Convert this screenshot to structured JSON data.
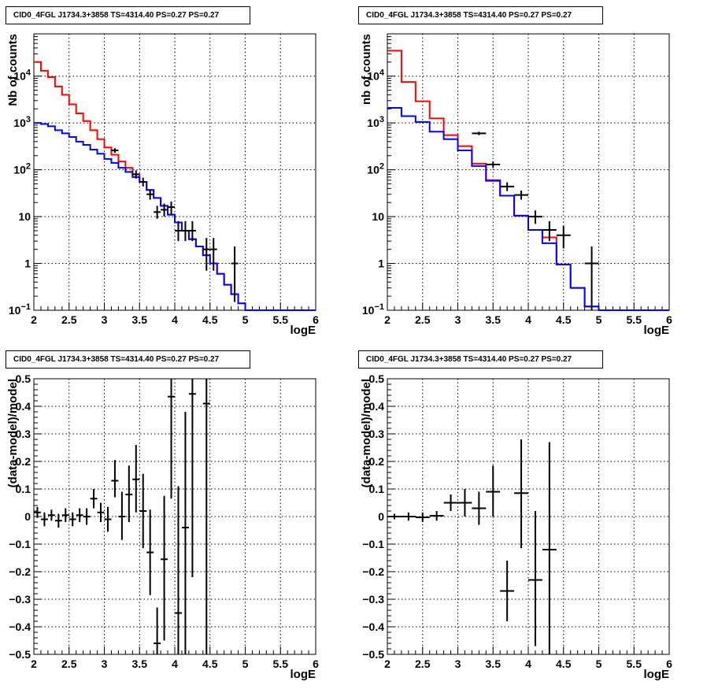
{
  "panels": [
    {
      "title": "CID0_4FGL J1734.3+3858 TS=4314.40 PS=0.27 PS=0.27",
      "chart_data": {
        "type": "line",
        "ylabel": "Nb of counts",
        "xlabel": "logE",
        "xlim": [
          2,
          6
        ],
        "ylim": [
          0.1,
          80000
        ],
        "yscale": "log",
        "grid": true,
        "xticks": [
          "2",
          "2.5",
          "3",
          "3.5",
          "4",
          "4.5",
          "5",
          "5.5",
          "6"
        ],
        "yticks": [
          {
            "value": 0.1,
            "label": "10",
            "sup": "−1"
          },
          {
            "value": 1,
            "label": "1",
            "sup": ""
          },
          {
            "value": 10,
            "label": "10",
            "sup": ""
          },
          {
            "value": 100,
            "label": "10",
            "sup": "2"
          },
          {
            "value": 1000,
            "label": "10",
            "sup": "3"
          },
          {
            "value": 10000,
            "label": "10",
            "sup": "4"
          }
        ],
        "bin_edges": [
          2.0,
          2.1,
          2.2,
          2.3,
          2.4,
          2.5,
          2.6,
          2.7,
          2.8,
          2.9,
          3.0,
          3.1,
          3.2,
          3.3,
          3.4,
          3.5,
          3.6,
          3.7,
          3.8,
          3.9,
          4.0,
          4.1,
          4.2,
          4.3,
          4.4,
          4.5,
          4.6,
          4.7,
          4.8,
          4.9,
          5.0,
          5.1,
          5.2,
          5.3,
          5.4,
          5.5,
          5.6,
          5.7,
          5.8,
          5.9,
          6.0
        ],
        "series": [
          {
            "color": "#ff0000",
            "values": [
              20000,
              13000,
              9500,
              6000,
              4000,
              2500,
              1600,
              1100,
              700,
              450,
              300,
              210,
              150,
              110,
              80,
              55,
              37,
              25,
              17,
              11,
              7.5,
              5,
              3.3,
              2.3,
              1.5,
              1.0,
              0.6,
              0.35,
              0.22,
              0.14,
              0.1,
              0.1,
              0.1,
              0.1,
              0.1,
              0.1,
              0.1,
              0.1,
              0.1,
              0.1
            ]
          },
          {
            "color": "#0000ff",
            "values": [
              1000,
              950,
              850,
              700,
              600,
              500,
              400,
              340,
              270,
              220,
              170,
              140,
              110,
              90,
              70,
              55,
              37,
              25,
              17,
              11,
              7.5,
              5,
              3.3,
              2.3,
              1.5,
              1.0,
              0.6,
              0.35,
              0.22,
              0.14,
              0.1,
              0.1,
              0.1,
              0.1,
              0.1,
              0.1,
              0.1,
              0.1,
              0.1,
              0.1
            ]
          }
        ],
        "points": [
          {
            "x": 3.15,
            "y": 260,
            "ylo": 230,
            "yhi": 290,
            "xerr": 0.05
          },
          {
            "x": 3.45,
            "y": 80,
            "ylo": 65,
            "yhi": 97,
            "xerr": 0.05
          },
          {
            "x": 3.55,
            "y": 55,
            "ylo": 44,
            "yhi": 68,
            "xerr": 0.05
          },
          {
            "x": 3.65,
            "y": 30,
            "ylo": 23,
            "yhi": 38,
            "xerr": 0.05
          },
          {
            "x": 3.75,
            "y": 12.5,
            "ylo": 9,
            "yhi": 17,
            "xerr": 0.05
          },
          {
            "x": 3.85,
            "y": 14,
            "ylo": 10,
            "yhi": 19,
            "xerr": 0.05
          },
          {
            "x": 3.95,
            "y": 16,
            "ylo": 11,
            "yhi": 21,
            "xerr": 0.05
          },
          {
            "x": 4.05,
            "y": 5,
            "ylo": 3,
            "yhi": 8,
            "xerr": 0.05
          },
          {
            "x": 4.15,
            "y": 5,
            "ylo": 3,
            "yhi": 8,
            "xerr": 0.05
          },
          {
            "x": 4.25,
            "y": 5,
            "ylo": 3,
            "yhi": 8,
            "xerr": 0.05
          },
          {
            "x": 4.45,
            "y": 2,
            "ylo": 0.7,
            "yhi": 3.5,
            "xerr": 0.05
          },
          {
            "x": 4.55,
            "y": 2,
            "ylo": 0.7,
            "yhi": 3.5,
            "xerr": 0.05
          },
          {
            "x": 4.85,
            "y": 1,
            "ylo": 0.15,
            "yhi": 2.3,
            "xerr": 0.05
          }
        ]
      }
    },
    {
      "title": "CID0_4FGL J1734.3+3858 TS=4314.40 PS=0.27 PS=0.27",
      "chart_data": {
        "type": "line",
        "ylabel": "nb of counts",
        "xlabel": "logE",
        "xlim": [
          2,
          6
        ],
        "ylim": [
          0.1,
          80000
        ],
        "yscale": "log",
        "grid": true,
        "xticks": [
          "2",
          "2.5",
          "3",
          "3.5",
          "4",
          "4.5",
          "5",
          "5.5",
          "6"
        ],
        "yticks": [
          {
            "value": 0.1,
            "label": "10",
            "sup": "−1"
          },
          {
            "value": 1,
            "label": "1",
            "sup": ""
          },
          {
            "value": 10,
            "label": "10",
            "sup": ""
          },
          {
            "value": 100,
            "label": "10",
            "sup": "2"
          },
          {
            "value": 1000,
            "label": "10",
            "sup": "3"
          },
          {
            "value": 10000,
            "label": "10",
            "sup": "4"
          }
        ],
        "bin_edges": [
          2.0,
          2.2,
          2.4,
          2.6,
          2.8,
          3.0,
          3.2,
          3.4,
          3.6,
          3.8,
          4.0,
          4.2,
          4.4,
          4.6,
          4.8,
          5.0,
          5.2,
          5.4,
          5.6,
          5.8,
          6.0
        ],
        "series": [
          {
            "color": "#ff0000",
            "values": [
              35000,
              7500,
              2900,
              1250,
              550,
              320,
              135,
              60,
              28,
              10.5,
              5.2,
              3.6,
              0.95,
              0.3,
              0.12,
              0.1,
              0.1,
              0.1,
              0.1,
              0.1
            ]
          },
          {
            "color": "#0000ff",
            "values": [
              2100,
              1400,
              1050,
              650,
              450,
              260,
              120,
              58,
              28,
              10.5,
              5.2,
              2.7,
              0.95,
              0.3,
              0.12,
              0.1,
              0.1,
              0.1,
              0.1,
              0.1
            ]
          }
        ],
        "points": [
          {
            "x": 3.3,
            "y": 600,
            "ylo": 550,
            "yhi": 650,
            "xerr": 0.1
          },
          {
            "x": 3.5,
            "y": 130,
            "ylo": 110,
            "yhi": 150,
            "xerr": 0.1
          },
          {
            "x": 3.7,
            "y": 44,
            "ylo": 35,
            "yhi": 54,
            "xerr": 0.1
          },
          {
            "x": 3.9,
            "y": 29,
            "ylo": 23,
            "yhi": 36,
            "xerr": 0.1
          },
          {
            "x": 4.1,
            "y": 10,
            "ylo": 7,
            "yhi": 13.5,
            "xerr": 0.1
          },
          {
            "x": 4.3,
            "y": 5.2,
            "ylo": 3,
            "yhi": 8,
            "xerr": 0.1
          },
          {
            "x": 4.5,
            "y": 4,
            "ylo": 2.1,
            "yhi": 6.3,
            "xerr": 0.1
          },
          {
            "x": 4.9,
            "y": 1,
            "ylo": 0.1,
            "yhi": 2.3,
            "xerr": 0.1
          }
        ]
      }
    },
    {
      "title": "CID0_4FGL J1734.3+3858 TS=4314.40 PS=0.27 PS=0.27",
      "chart_data": {
        "type": "scatter",
        "ylabel": "(data-model)/model",
        "xlabel": "logE",
        "xlim": [
          2,
          6
        ],
        "ylim": [
          -0.5,
          0.5
        ],
        "yscale": "linear",
        "grid": true,
        "xticks": [
          "2",
          "2.5",
          "3",
          "3.5",
          "4",
          "4.5",
          "5",
          "5.5",
          "6"
        ],
        "yticks": [
          {
            "value": -0.5,
            "label": "−0.5",
            "sup": ""
          },
          {
            "value": -0.4,
            "label": "−0.4",
            "sup": ""
          },
          {
            "value": -0.3,
            "label": "−0.3",
            "sup": ""
          },
          {
            "value": -0.2,
            "label": "−0.2",
            "sup": ""
          },
          {
            "value": -0.1,
            "label": "−0.1",
            "sup": ""
          },
          {
            "value": 0,
            "label": "0",
            "sup": ""
          },
          {
            "value": 0.1,
            "label": "0.1",
            "sup": ""
          },
          {
            "value": 0.2,
            "label": "0.2",
            "sup": ""
          },
          {
            "value": 0.3,
            "label": "0.3",
            "sup": ""
          },
          {
            "value": 0.4,
            "label": "0.4",
            "sup": ""
          },
          {
            "value": 0.5,
            "label": "0.5",
            "sup": ""
          }
        ],
        "series": [],
        "points": [
          {
            "x": 2.05,
            "y": 0.015,
            "ylo": -0.005,
            "yhi": 0.035,
            "xerr": 0.05
          },
          {
            "x": 2.15,
            "y": -0.01,
            "ylo": -0.035,
            "yhi": 0.015,
            "xerr": 0.05
          },
          {
            "x": 2.25,
            "y": 0.005,
            "ylo": -0.015,
            "yhi": 0.025,
            "xerr": 0.05
          },
          {
            "x": 2.35,
            "y": -0.015,
            "ylo": -0.04,
            "yhi": 0.01,
            "xerr": 0.05
          },
          {
            "x": 2.45,
            "y": 0.005,
            "ylo": -0.02,
            "yhi": 0.03,
            "xerr": 0.05
          },
          {
            "x": 2.55,
            "y": -0.01,
            "ylo": -0.035,
            "yhi": 0.015,
            "xerr": 0.05
          },
          {
            "x": 2.65,
            "y": 0.005,
            "ylo": -0.02,
            "yhi": 0.03,
            "xerr": 0.05
          },
          {
            "x": 2.75,
            "y": 0.0,
            "ylo": -0.03,
            "yhi": 0.03,
            "xerr": 0.05
          },
          {
            "x": 2.85,
            "y": 0.065,
            "ylo": 0.03,
            "yhi": 0.1,
            "xerr": 0.05
          },
          {
            "x": 2.95,
            "y": 0.015,
            "ylo": -0.02,
            "yhi": 0.05,
            "xerr": 0.05
          },
          {
            "x": 3.05,
            "y": -0.01,
            "ylo": -0.055,
            "yhi": 0.035,
            "xerr": 0.05
          },
          {
            "x": 3.15,
            "y": 0.13,
            "ylo": 0.07,
            "yhi": 0.205,
            "xerr": 0.05
          },
          {
            "x": 3.25,
            "y": 0.0,
            "ylo": -0.085,
            "yhi": 0.09,
            "xerr": 0.05
          },
          {
            "x": 3.35,
            "y": 0.08,
            "ylo": -0.02,
            "yhi": 0.185,
            "xerr": 0.05
          },
          {
            "x": 3.45,
            "y": 0.135,
            "ylo": 0.015,
            "yhi": 0.26,
            "xerr": 0.05
          },
          {
            "x": 3.55,
            "y": 0.02,
            "ylo": -0.115,
            "yhi": 0.155,
            "xerr": 0.05
          },
          {
            "x": 3.65,
            "y": -0.13,
            "ylo": -0.285,
            "yhi": 0.025,
            "xerr": 0.05
          },
          {
            "x": 3.75,
            "y": -0.46,
            "ylo": -0.5,
            "yhi": -0.33,
            "xerr": 0.05
          },
          {
            "x": 3.85,
            "y": -0.155,
            "ylo": -0.45,
            "yhi": 0.075,
            "xerr": 0.05
          },
          {
            "x": 3.95,
            "y": 0.435,
            "ylo": 0.065,
            "yhi": 0.5,
            "xerr": 0.05
          },
          {
            "x": 4.05,
            "y": -0.35,
            "ylo": -0.5,
            "yhi": 0.11,
            "xerr": 0.05
          },
          {
            "x": 4.15,
            "y": -0.04,
            "ylo": -0.5,
            "yhi": 0.38,
            "xerr": 0.05
          },
          {
            "x": 4.25,
            "y": 0.445,
            "ylo": -0.22,
            "yhi": 0.5,
            "xerr": 0.05
          },
          {
            "x": 4.45,
            "y": 0.41,
            "ylo": -0.5,
            "yhi": 0.5,
            "xerr": 0.05
          }
        ]
      }
    },
    {
      "title": "CID0_4FGL J1734.3+3858 TS=4314.40 PS=0.27 PS=0.27",
      "chart_data": {
        "type": "scatter",
        "ylabel": "(data-model)/model",
        "xlabel": "logE",
        "xlim": [
          2,
          6
        ],
        "ylim": [
          -0.5,
          0.5
        ],
        "yscale": "linear",
        "grid": true,
        "xticks": [
          "2",
          "2.5",
          "3",
          "3.5",
          "4",
          "4.5",
          "5",
          "5.5",
          "6"
        ],
        "yticks": [
          {
            "value": -0.5,
            "label": "−0.5",
            "sup": ""
          },
          {
            "value": -0.4,
            "label": "−0.4",
            "sup": ""
          },
          {
            "value": -0.3,
            "label": "−0.3",
            "sup": ""
          },
          {
            "value": -0.2,
            "label": "−0.2",
            "sup": ""
          },
          {
            "value": -0.1,
            "label": "−0.1",
            "sup": ""
          },
          {
            "value": 0,
            "label": "0",
            "sup": ""
          },
          {
            "value": 0.1,
            "label": "0.1",
            "sup": ""
          },
          {
            "value": 0.2,
            "label": "0.2",
            "sup": ""
          },
          {
            "value": 0.3,
            "label": "0.3",
            "sup": ""
          },
          {
            "value": 0.4,
            "label": "0.4",
            "sup": ""
          },
          {
            "value": 0.5,
            "label": "0.5",
            "sup": ""
          }
        ],
        "series": [],
        "points": [
          {
            "x": 2.1,
            "y": 0.0,
            "ylo": -0.01,
            "yhi": 0.01,
            "xerr": 0.1
          },
          {
            "x": 2.3,
            "y": 0.0,
            "ylo": -0.015,
            "yhi": 0.015,
            "xerr": 0.1
          },
          {
            "x": 2.5,
            "y": -0.003,
            "ylo": -0.02,
            "yhi": 0.015,
            "xerr": 0.1
          },
          {
            "x": 2.7,
            "y": 0.003,
            "ylo": -0.015,
            "yhi": 0.02,
            "xerr": 0.1
          },
          {
            "x": 2.9,
            "y": 0.05,
            "ylo": 0.02,
            "yhi": 0.08,
            "xerr": 0.1
          },
          {
            "x": 3.1,
            "y": 0.05,
            "ylo": 0.0,
            "yhi": 0.1,
            "xerr": 0.1
          },
          {
            "x": 3.3,
            "y": 0.03,
            "ylo": -0.03,
            "yhi": 0.09,
            "xerr": 0.1
          },
          {
            "x": 3.5,
            "y": 0.09,
            "ylo": 0.0,
            "yhi": 0.185,
            "xerr": 0.1
          },
          {
            "x": 3.7,
            "y": -0.27,
            "ylo": -0.38,
            "yhi": -0.16,
            "xerr": 0.1
          },
          {
            "x": 3.9,
            "y": 0.085,
            "ylo": -0.115,
            "yhi": 0.28,
            "xerr": 0.1
          },
          {
            "x": 4.1,
            "y": -0.23,
            "ylo": -0.47,
            "yhi": 0.02,
            "xerr": 0.1
          },
          {
            "x": 4.3,
            "y": -0.12,
            "ylo": -0.5,
            "yhi": 0.27,
            "xerr": 0.1
          }
        ]
      }
    }
  ]
}
